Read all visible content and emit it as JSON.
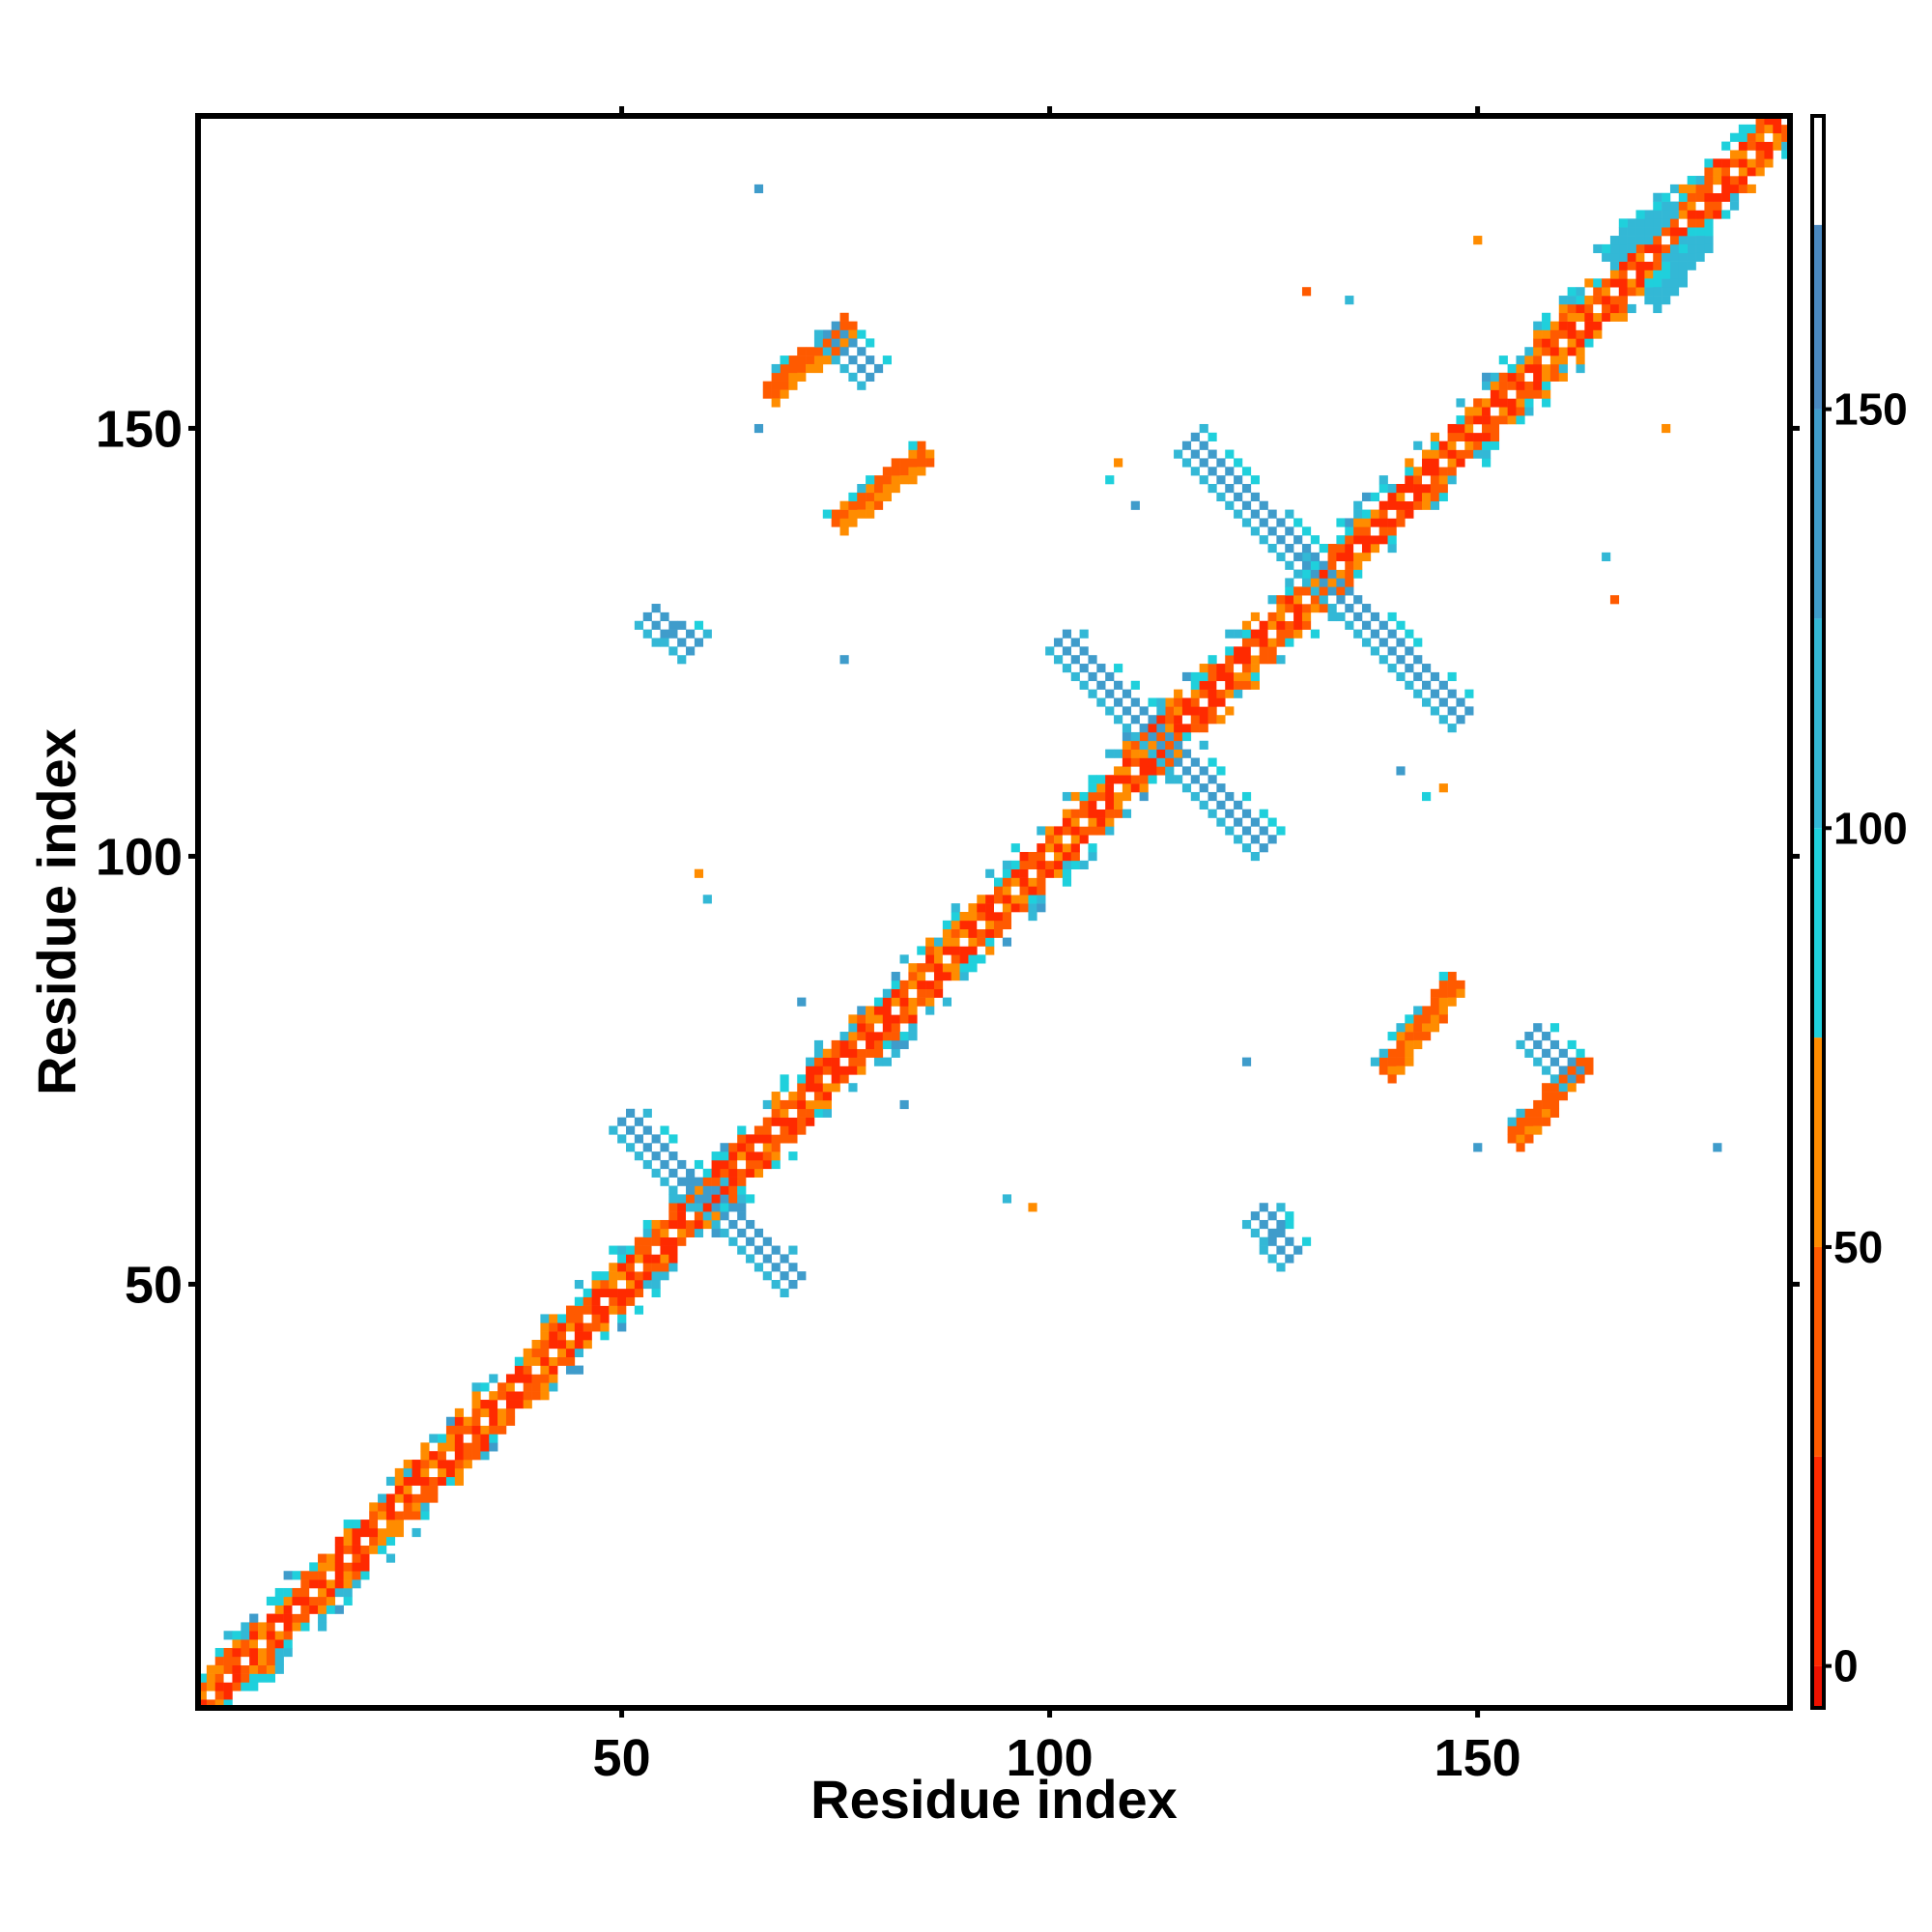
{
  "chart_data": {
    "type": "heatmap",
    "title": "",
    "xlabel": "Residue index",
    "ylabel": "Residue index",
    "xlim": [
      1,
      186
    ],
    "ylim": [
      1,
      186
    ],
    "xticks": [
      50,
      100,
      150
    ],
    "yticks": [
      50,
      100,
      150
    ],
    "colorbar": {
      "range": [
        -5,
        185
      ],
      "ticks": [
        0,
        50,
        100,
        150
      ],
      "bands": [
        {
          "from": -5,
          "to": 0,
          "color": "#ee1100"
        },
        {
          "from": 0,
          "to": 25,
          "color": "#ff2a00"
        },
        {
          "from": 25,
          "to": 50,
          "color": "#ff5a00"
        },
        {
          "from": 50,
          "to": 75,
          "color": "#ff8c00"
        },
        {
          "from": 75,
          "to": 100,
          "color": "#1fd0dc"
        },
        {
          "from": 100,
          "to": 125,
          "color": "#33b8d6"
        },
        {
          "from": 125,
          "to": 150,
          "color": "#3f9ccb"
        },
        {
          "from": 150,
          "to": 172,
          "color": "#4a88c0"
        },
        {
          "from": 172,
          "to": 185,
          "color": "#ffffff"
        }
      ]
    },
    "diagonal": {
      "from": 1,
      "to": 186
    },
    "contact_features": [
      {
        "kind": "antiparallel",
        "x0": 50,
        "y0": 69,
        "x1": 70,
        "y1": 50,
        "value": 140
      },
      {
        "kind": "antiparallel",
        "x0": 101,
        "y0": 125,
        "x1": 125,
        "y1": 101,
        "value": 140
      },
      {
        "kind": "antiparallel",
        "x0": 116,
        "y0": 148,
        "x1": 148,
        "y1": 116,
        "value": 140
      },
      {
        "kind": "parallel",
        "x0": 67,
        "y0": 154,
        "x1": 76,
        "y1": 162,
        "value": 40
      },
      {
        "kind": "parallel",
        "x0": 154,
        "y0": 67,
        "x1": 162,
        "y1": 76,
        "value": 40
      },
      {
        "kind": "antiparallel",
        "x0": 74,
        "y0": 161,
        "x1": 79,
        "y1": 156,
        "value": 140
      },
      {
        "kind": "antiparallel",
        "x0": 161,
        "y0": 74,
        "x1": 156,
        "y1": 79,
        "value": 140
      },
      {
        "kind": "parallel",
        "x0": 75,
        "y0": 139,
        "x1": 85,
        "y1": 147,
        "value": 45
      },
      {
        "kind": "parallel",
        "x0": 139,
        "y0": 75,
        "x1": 147,
        "y1": 85,
        "value": 45
      },
      {
        "kind": "antiparallel",
        "x0": 53,
        "y0": 128,
        "x1": 58,
        "y1": 124,
        "value": 140
      },
      {
        "kind": "antiparallel",
        "x0": 128,
        "y0": 53,
        "x1": 124,
        "y1": 58,
        "value": 140
      },
      {
        "kind": "parallel",
        "x0": 165,
        "y0": 170,
        "x1": 172,
        "y1": 176,
        "value": 100
      },
      {
        "kind": "parallel",
        "x0": 170,
        "y0": 165,
        "x1": 176,
        "y1": 172,
        "value": 100
      }
    ]
  }
}
